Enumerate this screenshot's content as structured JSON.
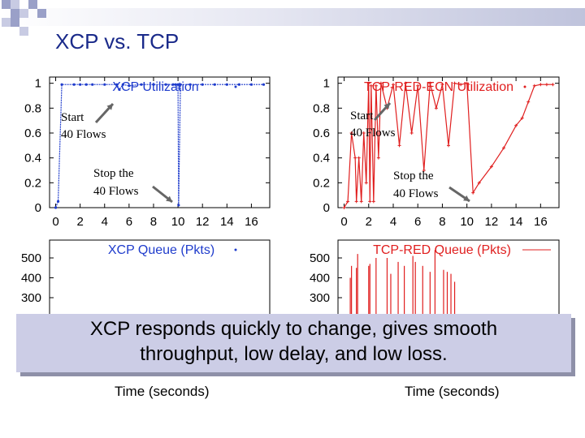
{
  "slide": {
    "title": "XCP vs. TCP",
    "caption_line1": "XCP responds quickly to change, gives smooth",
    "caption_line2": "throughput, low delay, and low loss."
  },
  "colors": {
    "xcp": "#1f3ccc",
    "tcp": "#e01f1f",
    "title": "#1a2a8a",
    "caption_bg": "#cccde6"
  },
  "chart_data": [
    {
      "type": "line",
      "title": "XCP Utilization",
      "x": [
        0,
        0.2,
        0.5,
        1.5,
        2.0,
        2.5,
        3,
        4,
        5,
        5.2,
        5.5,
        6,
        7,
        8,
        9,
        9.6,
        9.8,
        10.0,
        10.05,
        10.2,
        11,
        12,
        13,
        14,
        15,
        16,
        17
      ],
      "y": [
        0,
        0.05,
        0.99,
        0.99,
        0.99,
        0.99,
        0.99,
        0.99,
        0.99,
        0.95,
        0.99,
        0.98,
        0.99,
        0.99,
        0.99,
        0.99,
        0.99,
        0.99,
        0.02,
        0.99,
        0.99,
        0.99,
        0.99,
        0.99,
        0.99,
        0.99,
        0.99
      ],
      "xlim": [
        -0.5,
        17.5
      ],
      "ylim": [
        0,
        1.05
      ],
      "xticks": [
        "0",
        "2",
        "4",
        "6",
        "8",
        "10",
        "12",
        "14",
        "16"
      ],
      "yticks": [
        "0",
        "0.2",
        "0.4",
        "0.6",
        "0.8",
        "1"
      ],
      "annotations": [
        "Start",
        "40 Flows",
        "Stop the",
        "40 Flows"
      ],
      "color": "#1f3ccc"
    },
    {
      "type": "line",
      "title": "TCP-RED-ECN Utilization",
      "x": [
        0,
        0.3,
        0.6,
        0.9,
        1.0,
        1.2,
        1.4,
        1.6,
        1.8,
        2.0,
        2.1,
        2.2,
        2.4,
        2.6,
        2.8,
        3.0,
        3.5,
        4.0,
        4.5,
        5.0,
        5.5,
        6.0,
        6.5,
        7.0,
        7.5,
        8.0,
        8.5,
        9.0,
        9.5,
        10.0,
        10.5,
        11,
        12,
        13,
        14,
        14.5,
        15,
        15.5,
        16,
        16.5,
        17
      ],
      "y": [
        0,
        0.05,
        0.6,
        0.4,
        0.05,
        0.4,
        0.05,
        0.6,
        0.2,
        1.0,
        0.05,
        0.98,
        0.05,
        0.98,
        0.4,
        1.0,
        0.8,
        0.99,
        0.5,
        1.0,
        0.6,
        0.98,
        0.3,
        1.0,
        0.8,
        0.99,
        0.5,
        1.0,
        0.99,
        1.0,
        0.12,
        0.2,
        0.33,
        0.48,
        0.66,
        0.72,
        0.85,
        0.98,
        0.99,
        0.99,
        0.99
      ],
      "xlim": [
        -0.5,
        17.5
      ],
      "ylim": [
        0,
        1.05
      ],
      "xticks": [
        "0",
        "2",
        "4",
        "6",
        "8",
        "10",
        "12",
        "14",
        "16"
      ],
      "yticks": [
        "0",
        "0.2",
        "0.4",
        "0.6",
        "0.8",
        "1"
      ],
      "annotations": [
        "Start",
        "40 Flows",
        "Stop the",
        "40 Flows"
      ],
      "color": "#e01f1f"
    },
    {
      "type": "line",
      "title": "XCP Queue (Pkts)",
      "yticks": [
        "300",
        "400",
        "500"
      ],
      "xlabel": "Time (seconds)",
      "color": "#1f3ccc"
    },
    {
      "type": "line",
      "title": "TCP-RED Queue (Pkts)",
      "x": [
        0.5,
        0.6,
        1.0,
        1.1,
        2.0,
        2.1,
        2.6,
        3.5,
        3.8,
        4.4,
        4.9,
        5.6,
        5.8,
        6.4,
        7.0,
        7.4,
        8.1,
        8.4,
        8.7,
        9.0
      ],
      "y": [
        400,
        460,
        450,
        520,
        460,
        470,
        500,
        500,
        420,
        480,
        460,
        510,
        480,
        460,
        430,
        540,
        440,
        430,
        420,
        380
      ],
      "yticks": [
        "300",
        "400",
        "500"
      ],
      "xlabel": "Time (seconds)",
      "color": "#e01f1f"
    }
  ]
}
